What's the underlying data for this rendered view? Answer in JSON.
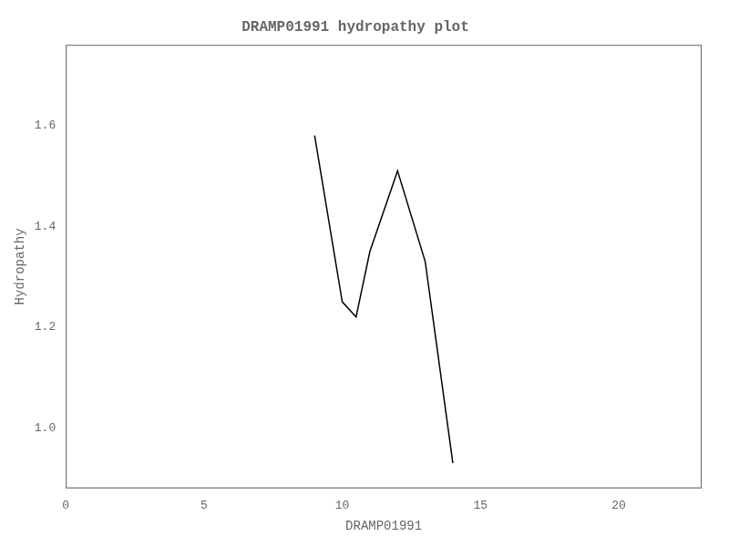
{
  "chart_data": {
    "type": "line",
    "title": "DRAMP01991 hydropathy plot",
    "xlabel": "DRAMP01991",
    "ylabel": "Hydropathy",
    "x": [
      9,
      10,
      10.5,
      11,
      12,
      13,
      14
    ],
    "values": [
      1.58,
      1.25,
      1.22,
      1.35,
      1.51,
      1.33,
      0.93
    ],
    "color": "#000000",
    "xlim": [
      0,
      23
    ],
    "ylim": [
      0.88,
      1.76
    ],
    "xticks": [
      0,
      5,
      10,
      15,
      20
    ],
    "yticks": [
      {
        "value": 1.0,
        "label": "1.0"
      },
      1.2,
      1.4,
      1.6
    ],
    "grid": false
  }
}
